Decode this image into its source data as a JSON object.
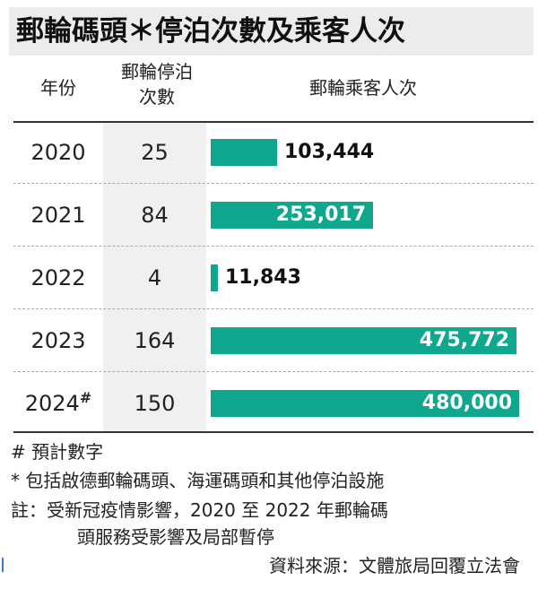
{
  "title": "郵輪碼頭＊停泊次數及乘客人次",
  "headers": {
    "year": "年份",
    "calls_line1": "郵輪停泊",
    "calls_line2": "次數",
    "passengers": "郵輪乘客人次"
  },
  "rows": [
    {
      "year": "2020",
      "mark": "",
      "calls": "25",
      "passengers_label": "103,444"
    },
    {
      "year": "2021",
      "mark": "",
      "calls": "84",
      "passengers_label": "253,017"
    },
    {
      "year": "2022",
      "mark": "",
      "calls": "4",
      "passengers_label": "11,843"
    },
    {
      "year": "2023",
      "mark": "",
      "calls": "164",
      "passengers_label": "475,772"
    },
    {
      "year": "2024",
      "mark": "#",
      "calls": "150",
      "passengers_label": "480,000"
    }
  ],
  "footnotes": {
    "estimate": "# 預計數字",
    "terminals": "* 包括啟德郵輪碼頭、海運碼頭和其他停泊設施",
    "note_line1": "註：受新冠疫情影響，2020 至 2022 年郵輪碼",
    "note_line2": "頭服務受影響及局部暫停",
    "source": "資料來源：文體旅局回覆立法會"
  },
  "colors": {
    "bar": "#0fa88f",
    "label_outside": "#111111",
    "label_inside": "#ffffff"
  },
  "chart_data": {
    "type": "bar",
    "orientation": "horizontal",
    "title": "郵輪碼頭＊停泊次數及乘客人次",
    "categories": [
      "2020",
      "2021",
      "2022",
      "2023",
      "2024"
    ],
    "series": [
      {
        "name": "郵輪停泊次數",
        "values": [
          25,
          84,
          4,
          164,
          150
        ]
      },
      {
        "name": "郵輪乘客人次",
        "values": [
          103444,
          253017,
          11843,
          475772,
          480000
        ]
      }
    ],
    "xlim": [
      0,
      480000
    ]
  }
}
